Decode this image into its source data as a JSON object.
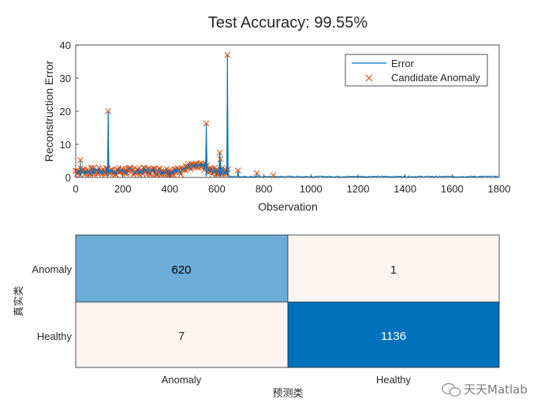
{
  "chart_data": [
    {
      "type": "line",
      "title": "Test Accuracy: 99.55%",
      "xlabel": "Observation",
      "ylabel": "Reconstruction Error",
      "xlim": [
        0,
        1800
      ],
      "ylim": [
        0,
        40
      ],
      "xticks": [
        "0",
        "200",
        "400",
        "600",
        "800",
        "1000",
        "1200",
        "1400",
        "1600",
        "1800"
      ],
      "yticks": [
        "0",
        "10",
        "20",
        "30",
        "40"
      ],
      "legend_position": "top-right",
      "grid": false,
      "series": [
        {
          "name": "Error",
          "style": "line",
          "color": "#0072BD",
          "spikes": [
            [
              20,
              5.2
            ],
            [
              138,
              20
            ],
            [
              555,
              16.3
            ],
            [
              612,
              7.5
            ],
            [
              615,
              5.5
            ],
            [
              645,
              37
            ],
            [
              690,
              2.1
            ],
            [
              770,
              1.3
            ],
            [
              840,
              0.6
            ]
          ],
          "baseline_note": ""
        },
        {
          "name": "Candidate Anomaly",
          "style": "x-marker",
          "color": "#D95319",
          "points": [
            [
              20,
              5.2
            ],
            [
              138,
              20
            ],
            [
              555,
              16.3
            ],
            [
              612,
              7.5
            ],
            [
              615,
              5.5
            ],
            [
              645,
              37
            ],
            [
              690,
              2.1
            ],
            [
              770,
              1.3
            ],
            [
              840,
              0.6
            ]
          ]
        }
      ]
    },
    {
      "type": "heatmap",
      "subtype": "confusion-matrix",
      "ylabel": "真实类",
      "xlabel": "预测类",
      "row_labels": [
        "Anomaly",
        "Healthy"
      ],
      "col_labels": [
        "Anomaly",
        "Healthy"
      ],
      "values": [
        [
          620,
          1
        ],
        [
          7,
          1136
        ]
      ],
      "cell_colors": [
        [
          "#6CADD8",
          "#FDF4F2"
        ],
        [
          "#FDF4F2",
          "#0072BD"
        ]
      ],
      "text_colors": [
        [
          "#000000",
          "#262626"
        ],
        [
          "#262626",
          "#FFFFFF"
        ]
      ]
    }
  ],
  "watermark": "天天Matlab"
}
